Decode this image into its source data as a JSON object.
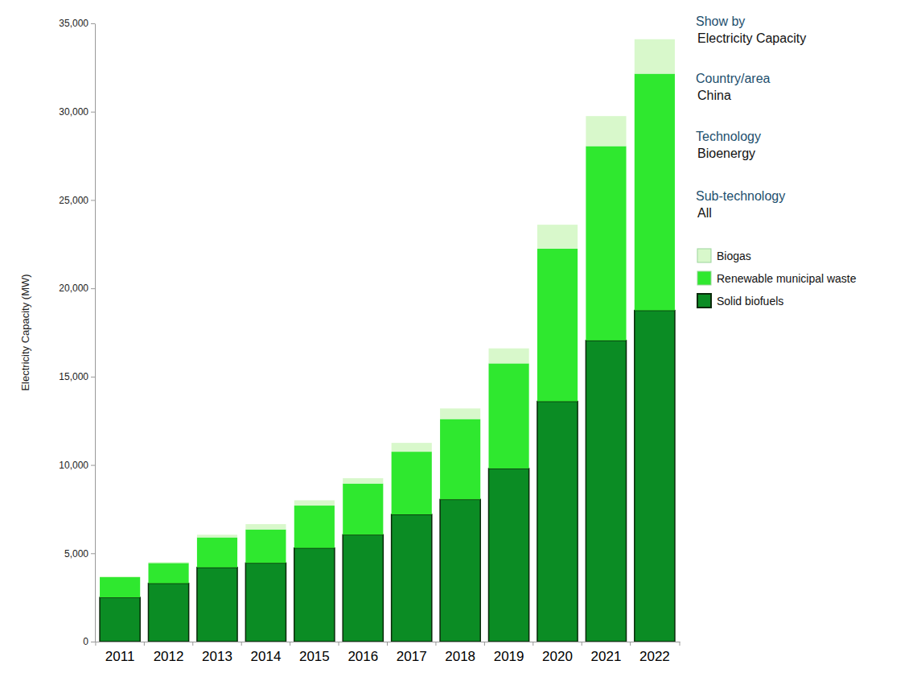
{
  "chart_data": {
    "type": "bar",
    "stacked": true,
    "y_label": "Electricity Capacity (MW)",
    "categories": [
      "2011",
      "2012",
      "2013",
      "2014",
      "2015",
      "2016",
      "2017",
      "2018",
      "2019",
      "2020",
      "2021",
      "2022"
    ],
    "series": [
      {
        "name": "Solid biofuels",
        "color": "#0b8c24",
        "values": [
          2500,
          3300,
          4200,
          4450,
          5300,
          6050,
          7200,
          8050,
          9800,
          13600,
          17050,
          18750
        ]
      },
      {
        "name": "Renewable municipal waste",
        "color": "#2fe82f",
        "values": [
          1150,
          1150,
          1700,
          1900,
          2400,
          2900,
          3550,
          4550,
          5950,
          8650,
          11000,
          13400
        ]
      },
      {
        "name": "Biogas",
        "color": "#d8f8cb",
        "values": [
          50,
          50,
          150,
          300,
          300,
          300,
          500,
          600,
          850,
          1350,
          1700,
          1950
        ]
      }
    ],
    "ylim": [
      0,
      35000
    ],
    "yticks": [
      0,
      {
        "value": 5000,
        "label": "5,000"
      },
      {
        "value": 10000,
        "label": "10,000"
      },
      {
        "value": 15000,
        "label": "15,000"
      },
      {
        "value": 20000,
        "label": "20,000"
      },
      {
        "value": 25000,
        "label": "25,000"
      },
      {
        "value": 30000,
        "label": "30,000"
      },
      {
        "value": 35000,
        "label": "35,000"
      }
    ],
    "grid": false,
    "legend": "right",
    "filters": [
      {
        "label": "Show by",
        "value": "Electricity Capacity"
      },
      {
        "label": "Country/area",
        "value": "China"
      },
      {
        "label": "Technology",
        "value": "Bioenergy"
      },
      {
        "label": "Sub-technology",
        "value": "All"
      }
    ]
  }
}
